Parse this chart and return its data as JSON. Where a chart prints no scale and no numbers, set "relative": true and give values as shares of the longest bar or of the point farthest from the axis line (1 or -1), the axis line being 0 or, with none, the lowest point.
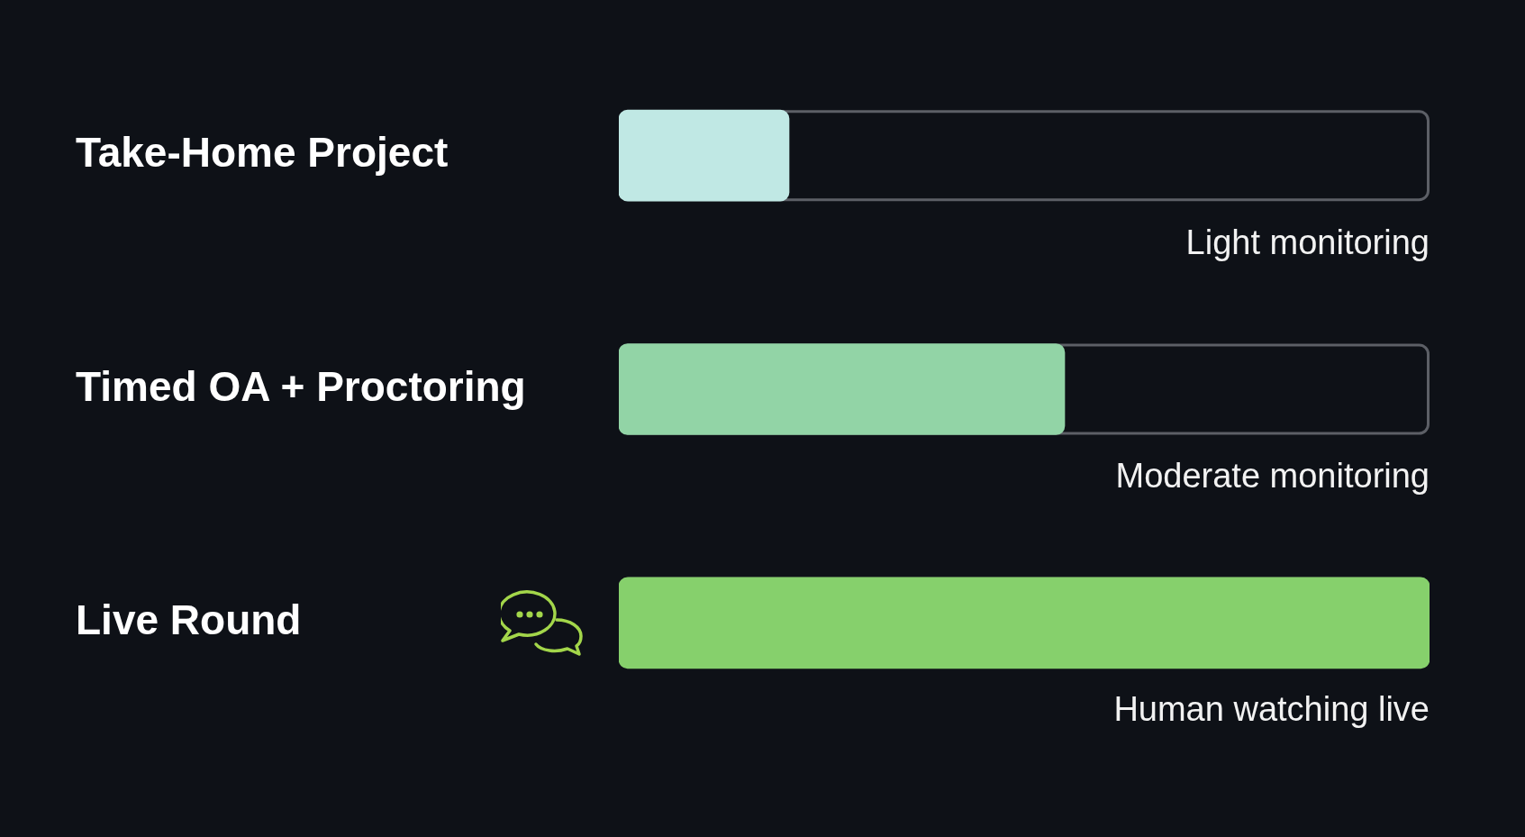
{
  "chart_data": {
    "type": "bar",
    "orientation": "horizontal",
    "relative": true,
    "categories": [
      "Take-Home Project",
      "Timed OA + Proctoring",
      "Live Round"
    ],
    "values": [
      0.21,
      0.55,
      1
    ],
    "colors": [
      "#c0e8e4",
      "#92d4a6",
      "#86d06c"
    ],
    "annotations": [
      "Light monitoring",
      "Moderate monitoring",
      "Human watching live"
    ]
  }
}
